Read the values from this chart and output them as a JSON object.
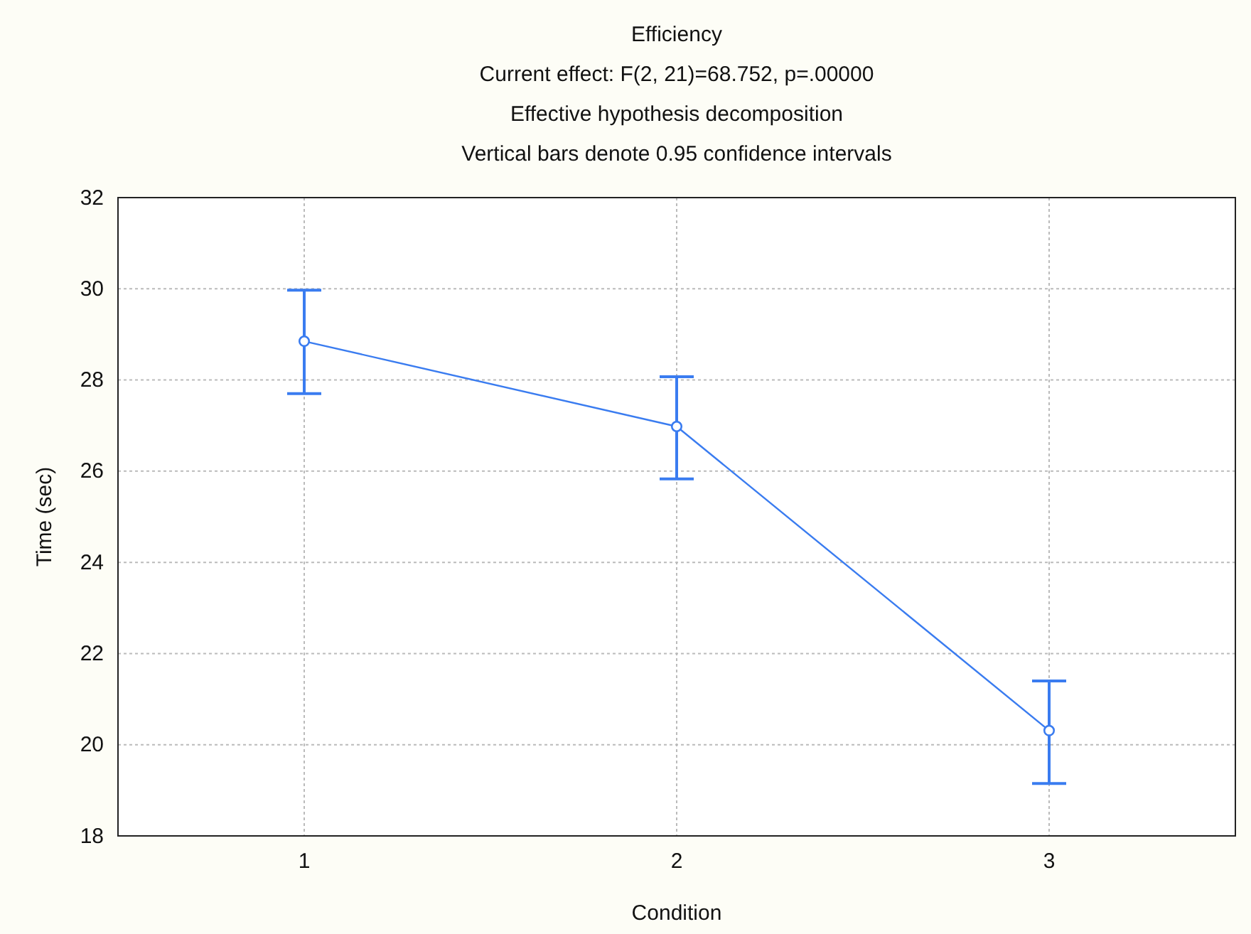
{
  "chart_data": {
    "type": "line",
    "title": "Efficiency",
    "subtitle": "Current effect: F(2, 21)=68.752, p=.00000",
    "annotations": [
      "Effective hypothesis decomposition",
      "Vertical bars denote 0.95 confidence intervals"
    ],
    "xlabel": "Condition",
    "ylabel": "Time (sec)",
    "categories": [
      "1",
      "2",
      "3"
    ],
    "series": [
      {
        "color": "#3a7cf0",
        "values": [
          28.85,
          26.98,
          20.31
        ],
        "errors": [
          [
            27.7,
            29.97
          ],
          [
            25.83,
            28.07
          ],
          [
            19.15,
            21.4
          ]
        ]
      }
    ],
    "ylim": [
      18,
      32
    ],
    "yticks": [
      18,
      20,
      22,
      24,
      26,
      28,
      30,
      32
    ],
    "grid": true,
    "marker": "circle",
    "line_style": "solid"
  }
}
